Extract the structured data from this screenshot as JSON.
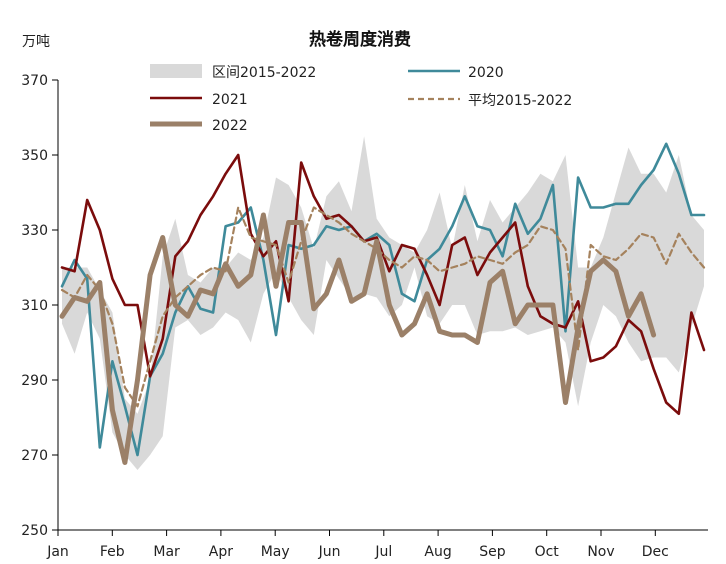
{
  "chart_data": {
    "type": "line",
    "title": "热卷周度消费",
    "unit_label": "万吨",
    "ylim": [
      250,
      370
    ],
    "y_ticks": [
      250,
      270,
      290,
      310,
      330,
      350,
      370
    ],
    "x_tick_labels": [
      "Jan",
      "Feb",
      "Mar",
      "Apr",
      "May",
      "Jun",
      "Jul",
      "Aug",
      "Sep",
      "Oct",
      "Nov",
      "Dec"
    ],
    "x_week_range": [
      1,
      52
    ],
    "grid": false,
    "legend_position": "top",
    "band": {
      "name": "区间2015-2022",
      "color": "#d9d9d9",
      "upper": [
        320,
        320,
        320,
        314,
        308,
        285,
        281,
        290,
        323,
        333,
        318,
        316,
        320,
        320,
        324,
        322,
        328,
        344,
        342,
        336,
        325,
        339,
        343,
        335,
        355,
        333,
        328,
        326,
        324,
        330,
        340,
        325,
        342,
        327,
        338,
        332,
        336,
        340,
        345,
        343,
        350,
        320,
        320,
        328,
        340,
        352,
        345,
        345,
        340,
        350,
        334,
        330
      ],
      "lower": [
        305,
        297,
        308,
        301,
        276,
        270,
        266,
        270,
        275,
        304,
        306,
        302,
        304,
        308,
        306,
        300,
        313,
        319,
        312,
        306,
        302,
        322,
        317,
        312,
        313,
        312,
        307,
        310,
        320,
        307,
        305,
        310,
        310,
        302,
        303,
        303,
        304,
        302,
        303,
        304,
        300,
        283,
        300,
        310,
        307,
        300,
        295,
        296,
        296,
        292,
        304,
        315
      ]
    },
    "series": [
      {
        "name": "2020",
        "color": "#3f8a9a",
        "width": 2.6,
        "dash": "",
        "values": [
          315,
          322,
          317,
          272,
          295,
          283,
          270,
          291,
          297,
          308,
          315,
          309,
          308,
          331,
          332,
          336,
          322,
          302,
          326,
          325,
          326,
          331,
          330,
          331,
          327,
          329,
          326,
          313,
          311,
          322,
          325,
          331,
          339,
          331,
          330,
          323,
          337,
          329,
          333,
          342,
          303,
          344,
          336,
          336,
          337,
          337,
          342,
          346,
          353,
          345,
          334,
          334
        ]
      },
      {
        "name": "2021",
        "color": "#7b0c0c",
        "width": 2.6,
        "dash": "",
        "values": [
          320,
          319,
          338,
          330,
          317,
          310,
          310,
          291,
          301,
          323,
          327,
          334,
          339,
          345,
          350,
          329,
          323,
          327,
          311,
          348,
          339,
          333,
          334,
          331,
          327,
          328,
          319,
          326,
          325,
          318,
          310,
          326,
          328,
          318,
          324,
          328,
          332,
          315,
          307,
          305,
          304,
          311,
          295,
          296,
          299,
          306,
          303,
          293,
          284,
          281,
          308,
          298
        ]
      },
      {
        "name": "平均2015-2022",
        "color": "#a5825d",
        "width": 2.2,
        "dash": "6,4",
        "values": [
          314,
          312,
          318,
          314,
          305,
          288,
          283,
          295,
          307,
          312,
          315,
          318,
          320,
          319,
          336,
          328,
          327,
          326,
          316,
          327,
          336,
          334,
          332,
          329,
          327,
          325,
          322,
          320,
          323,
          322,
          319,
          320,
          321,
          323,
          322,
          321,
          324,
          326,
          331,
          330,
          325,
          298,
          326,
          323,
          322,
          325,
          329,
          328,
          321,
          329,
          324,
          320
        ]
      },
      {
        "name": "2022",
        "color": "#9b8068",
        "width": 5,
        "dash": "",
        "values": [
          307,
          312,
          311,
          316,
          282,
          268,
          290,
          318,
          328,
          310,
          307,
          314,
          313,
          321,
          315,
          318,
          334,
          315,
          332,
          332,
          309,
          313,
          322,
          311,
          313,
          327,
          310,
          302,
          305,
          313,
          303,
          302,
          302,
          300,
          316,
          319,
          305,
          310,
          310,
          310,
          284,
          304,
          319,
          322,
          319,
          307,
          313,
          302
        ]
      }
    ]
  }
}
